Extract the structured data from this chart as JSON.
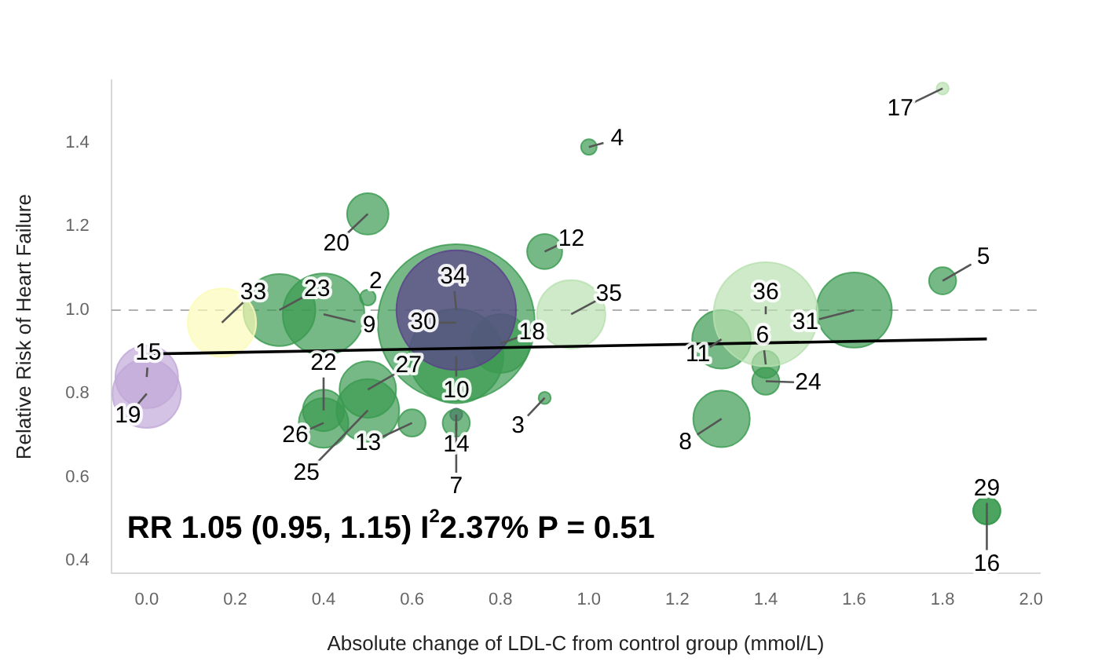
{
  "chart_data": {
    "type": "bubble",
    "xlabel": "Absolute change of LDL-C from control group (mmol/L)",
    "ylabel": "Relative Risk of Heart Failure",
    "xlim": [
      -0.08,
      2.02
    ],
    "ylim": [
      0.37,
      1.55
    ],
    "xticks": [
      {
        "value": 0,
        "label": "0.0"
      },
      0.2,
      0.4,
      0.6,
      0.8,
      {
        "value": 1,
        "label": "1.0"
      },
      1.2,
      1.4,
      1.6,
      1.8,
      {
        "value": 2,
        "label": "2.0"
      }
    ],
    "yticks": [
      0.4,
      0.6,
      0.8,
      {
        "value": 1,
        "label": "1.0"
      },
      1.2,
      1.4
    ],
    "grid": false,
    "ref_lines": [
      {
        "axis": "y",
        "value": 1.0,
        "color": "#b0b0b0",
        "line_style": "dashed"
      }
    ],
    "series": [
      {
        "x": [
          0.5,
          0.9,
          1.0,
          1.8,
          1.4,
          0.7,
          1.3,
          0.4,
          0.7,
          1.3,
          0.9,
          0.6,
          0.7,
          0.0,
          1.9,
          1.8,
          0.8,
          0.0,
          0.5,
          0.4,
          0.3,
          1.4,
          0.5,
          0.4,
          0.5,
          1.9,
          0.7,
          1.6,
          0.17,
          0.7,
          0.96,
          1.4
        ],
        "values": [
          1.03,
          0.79,
          1.39,
          1.07,
          0.87,
          0.75,
          0.74,
          0.99,
          0.89,
          0.93,
          1.14,
          0.73,
          0.73,
          0.84,
          0.52,
          1.53,
          0.92,
          0.8,
          1.23,
          0.76,
          1.0,
          0.83,
          0.76,
          0.73,
          0.81,
          0.52,
          0.97,
          1.0,
          0.97,
          1.0,
          0.99,
          0.99
        ],
        "sizes": [
          0.01,
          0.006,
          0.01,
          0.03,
          0.03,
          0.006,
          0.13,
          0.27,
          0.36,
          0.14,
          0.05,
          0.03,
          0.03,
          0.16,
          0.03,
          0.006,
          0.14,
          0.19,
          0.07,
          0.07,
          0.21,
          0.03,
          0.16,
          0.1,
          0.13,
          0.03,
          1,
          0.23,
          0.19,
          0.58,
          0.19,
          0.44
        ],
        "colors": [
          "#3a9a50",
          "#3a9a50",
          "#3a9a50",
          "#3a9a50",
          "#3a9a50",
          "#5b3f8c",
          "#3a9a50",
          "#3a9a50",
          "#3a9a50",
          "#3a9a50",
          "#3a9a50",
          "#3a9a50",
          "#3a9a50",
          "#c0a8d8",
          "#3a9a50",
          "#b8e0b0",
          "#3a9a50",
          "#c0a8d8",
          "#3a9a50",
          "#3a9a50",
          "#3a9a50",
          "#3a9a50",
          "#3a9a50",
          "#3a9a50",
          "#3a9a50",
          "#3a9a50",
          "#3a9a50",
          "#3a9a50",
          "#fbfbb8",
          "#5b3f8c",
          "#b8e0b0",
          "#b8e0b0"
        ]
      },
      {
        "type": "line",
        "x": [
          0,
          1.9
        ],
        "values": [
          0.895,
          0.931
        ],
        "color": "#000000"
      }
    ],
    "annotations": [
      {
        "text": "2",
        "x": 0.5,
        "y": 1.03
      },
      {
        "text": "3",
        "x": 0.9,
        "y": 0.79
      },
      {
        "text": "4",
        "x": 1.0,
        "y": 1.39
      },
      {
        "text": "5",
        "x": 1.8,
        "y": 1.07
      },
      {
        "text": "6",
        "x": 1.4,
        "y": 0.87
      },
      {
        "text": "7",
        "x": 0.7,
        "y": 0.75
      },
      {
        "text": "8",
        "x": 1.3,
        "y": 0.74
      },
      {
        "text": "9",
        "x": 0.4,
        "y": 0.99
      },
      {
        "text": "10",
        "x": 0.7,
        "y": 0.89
      },
      {
        "text": "11",
        "x": 1.3,
        "y": 0.93
      },
      {
        "text": "12",
        "x": 0.9,
        "y": 1.14
      },
      {
        "text": "13",
        "x": 0.6,
        "y": 0.73
      },
      {
        "text": "14",
        "x": 0.7,
        "y": 0.73
      },
      {
        "text": "15",
        "x": 0.0,
        "y": 0.84
      },
      {
        "text": "16",
        "x": 1.9,
        "y": 0.52
      },
      {
        "text": "17",
        "x": 1.8,
        "y": 1.53
      },
      {
        "text": "18",
        "x": 0.8,
        "y": 0.92
      },
      {
        "text": "19",
        "x": 0.0,
        "y": 0.8
      },
      {
        "text": "20",
        "x": 0.5,
        "y": 1.23
      },
      {
        "text": "22",
        "x": 0.4,
        "y": 0.76
      },
      {
        "text": "23",
        "x": 0.3,
        "y": 1.0
      },
      {
        "text": "24",
        "x": 1.4,
        "y": 0.83
      },
      {
        "text": "25",
        "x": 0.5,
        "y": 0.76
      },
      {
        "text": "26",
        "x": 0.4,
        "y": 0.73
      },
      {
        "text": "27",
        "x": 0.5,
        "y": 0.81
      },
      {
        "text": "29",
        "x": 1.9,
        "y": 0.52
      },
      {
        "text": "30",
        "x": 0.7,
        "y": 0.97
      },
      {
        "text": "31",
        "x": 1.6,
        "y": 1.0
      },
      {
        "text": "33",
        "x": 0.17,
        "y": 0.97
      },
      {
        "text": "34",
        "x": 0.7,
        "y": 1.0
      },
      {
        "text": "35",
        "x": 0.96,
        "y": 0.99
      },
      {
        "text": "36",
        "x": 1.4,
        "y": 0.99
      },
      "RR 1.05 (0.95, 1.15) I$^{2}$2.37% P = 0.51"
    ]
  }
}
